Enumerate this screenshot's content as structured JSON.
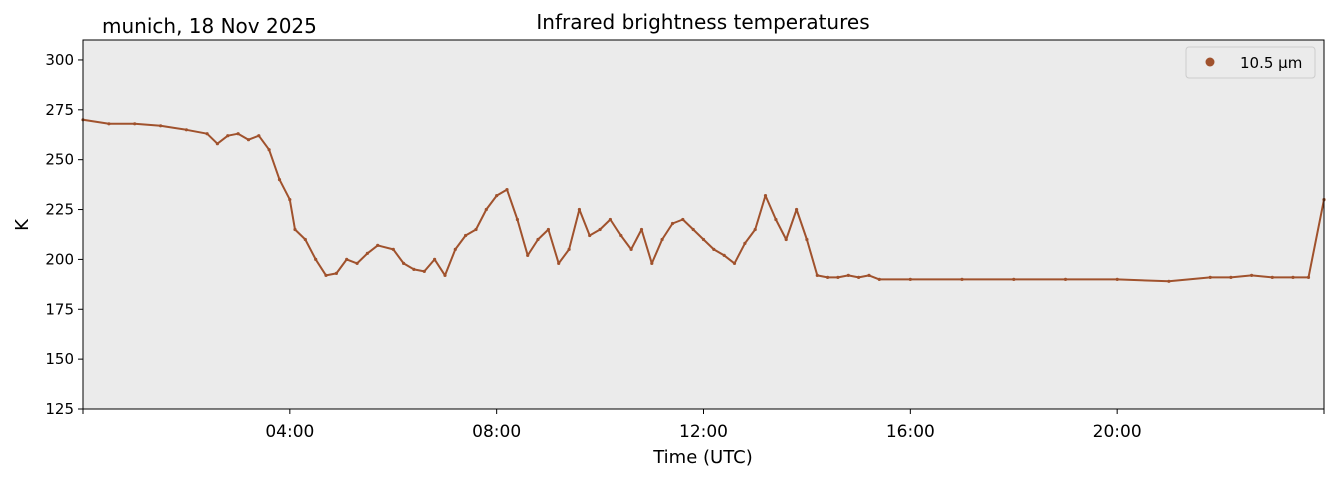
{
  "location_date": "munich, 18 Nov 2025",
  "chart_data": {
    "type": "scatter",
    "title": "Infrared brightness temperatures",
    "xlabel": "Time (UTC)",
    "ylabel": "K",
    "xlim": [
      0,
      24
    ],
    "ylim": [
      125,
      310
    ],
    "yticks": [
      125,
      150,
      175,
      200,
      225,
      250,
      275,
      300
    ],
    "xticks": [
      {
        "value": 4,
        "label": "04:00"
      },
      {
        "value": 8,
        "label": "08:00"
      },
      {
        "value": 12,
        "label": "12:00"
      },
      {
        "value": 16,
        "label": "16:00"
      },
      {
        "value": 20,
        "label": "20:00"
      }
    ],
    "grid": false,
    "legend_position": "top-right",
    "series": [
      {
        "name": "10.5 µm",
        "color": "#a0522d",
        "x": [
          0,
          0.5,
          1.0,
          1.5,
          2.0,
          2.4,
          2.6,
          2.8,
          3.0,
          3.2,
          3.4,
          3.6,
          3.8,
          4.0,
          4.1,
          4.3,
          4.5,
          4.7,
          4.9,
          5.1,
          5.3,
          5.5,
          5.7,
          6.0,
          6.2,
          6.4,
          6.6,
          6.8,
          7.0,
          7.2,
          7.4,
          7.6,
          7.8,
          8.0,
          8.2,
          8.4,
          8.6,
          8.8,
          9.0,
          9.2,
          9.4,
          9.6,
          9.8,
          10.0,
          10.2,
          10.4,
          10.6,
          10.8,
          11.0,
          11.2,
          11.4,
          11.6,
          11.8,
          12.0,
          12.2,
          12.4,
          12.6,
          12.8,
          13.0,
          13.2,
          13.4,
          13.6,
          13.8,
          14.0,
          14.2,
          14.4,
          14.6,
          14.8,
          15.0,
          15.2,
          15.4,
          16.0,
          17.0,
          18.0,
          19.0,
          20.0,
          21.0,
          21.8,
          22.2,
          22.6,
          23.0,
          23.4,
          23.7,
          24.0
        ],
        "values": [
          270,
          268,
          268,
          267,
          265,
          263,
          258,
          262,
          263,
          260,
          262,
          255,
          240,
          230,
          215,
          210,
          200,
          192,
          193,
          200,
          198,
          203,
          207,
          205,
          198,
          195,
          194,
          200,
          192,
          205,
          212,
          215,
          225,
          232,
          235,
          220,
          202,
          210,
          215,
          198,
          205,
          225,
          212,
          215,
          220,
          212,
          205,
          215,
          198,
          210,
          218,
          220,
          215,
          210,
          205,
          202,
          198,
          208,
          215,
          232,
          220,
          210,
          225,
          210,
          192,
          191,
          191,
          192,
          191,
          192,
          190,
          190,
          190,
          190,
          190,
          190,
          189,
          191,
          191,
          192,
          191,
          191,
          191,
          230
        ]
      }
    ]
  }
}
